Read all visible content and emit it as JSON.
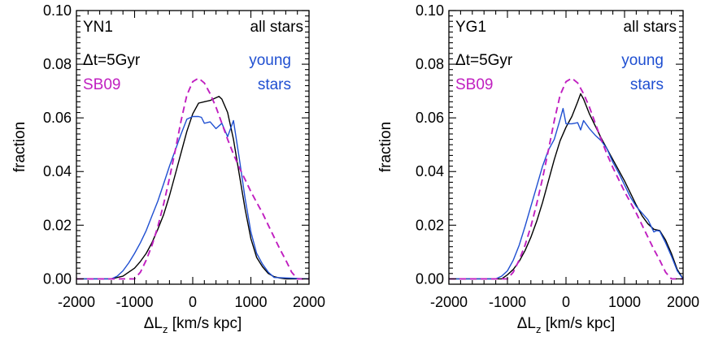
{
  "colors": {
    "all_stars": "#000000",
    "young_stars": "#1f4fd1",
    "sb09": "#c01fc0",
    "axis": "#000000",
    "background": "#ffffff"
  },
  "chart_data": [
    {
      "type": "line",
      "grid": false,
      "xlabel": "ΔL",
      "xlabel_sub": "z",
      "xlabel_units": " [km/s kpc]",
      "ylabel": "fraction",
      "xlim": [
        -2000,
        2000
      ],
      "ylim": [
        -0.002,
        0.1
      ],
      "xticks": [
        -2000,
        -1000,
        0,
        1000,
        2000
      ],
      "xtick_labels": [
        "-2000",
        "-1000",
        "0",
        "1000",
        "2000"
      ],
      "yticks": [
        0.0,
        0.02,
        0.04,
        0.06,
        0.08,
        0.1
      ],
      "ytick_labels": [
        "0.00",
        "0.02",
        "0.04",
        "0.06",
        "0.08",
        "0.10"
      ],
      "annotations": [
        {
          "text": "YN1",
          "color": "#000000"
        },
        {
          "text": "Δt=5Gyr",
          "color": "#000000"
        },
        {
          "text": "SB09",
          "color": "#c01fc0"
        }
      ],
      "legend": [
        {
          "text": "all stars",
          "color": "#000000"
        },
        {
          "text": "young",
          "color": "#1f4fd1"
        },
        {
          "text": "stars",
          "color": "#1f4fd1"
        }
      ],
      "series": [
        {
          "name": "all stars",
          "color": "#000000",
          "style": "solid",
          "x": [
            -2000,
            -1400,
            -1200,
            -1100,
            -1000,
            -900,
            -800,
            -700,
            -600,
            -500,
            -400,
            -300,
            -200,
            -100,
            0,
            100,
            200,
            300,
            400,
            450,
            500,
            600,
            700,
            800,
            900,
            1000,
            1100,
            1200,
            1300,
            1400,
            1500,
            1600,
            1700,
            2000
          ],
          "y": [
            0.0,
            0.0,
            0.001,
            0.0025,
            0.004,
            0.0065,
            0.0095,
            0.0135,
            0.0185,
            0.024,
            0.031,
            0.039,
            0.047,
            0.055,
            0.0615,
            0.0655,
            0.066,
            0.0665,
            0.0675,
            0.068,
            0.067,
            0.062,
            0.052,
            0.039,
            0.026,
            0.015,
            0.008,
            0.0045,
            0.002,
            0.0008,
            0.0003,
            0.0,
            0.0,
            0.0
          ]
        },
        {
          "name": "young stars",
          "color": "#1f4fd1",
          "style": "solid",
          "x": [
            -2000,
            -1400,
            -1300,
            -1200,
            -1100,
            -1000,
            -900,
            -800,
            -700,
            -600,
            -500,
            -400,
            -300,
            -200,
            -100,
            0,
            100,
            150,
            200,
            300,
            400,
            500,
            600,
            700,
            800,
            900,
            1000,
            1100,
            1200,
            1300,
            1400,
            2000
          ],
          "y": [
            0.0,
            0.0,
            0.001,
            0.003,
            0.006,
            0.0095,
            0.0135,
            0.018,
            0.0235,
            0.029,
            0.0355,
            0.042,
            0.048,
            0.054,
            0.0595,
            0.0605,
            0.0605,
            0.0602,
            0.058,
            0.0585,
            0.056,
            0.058,
            0.053,
            0.059,
            0.045,
            0.03,
            0.0175,
            0.0095,
            0.0055,
            0.0025,
            0.0005,
            0.0
          ]
        },
        {
          "name": "SB09",
          "color": "#c01fc0",
          "style": "dashed",
          "x": [
            -2000,
            -1000,
            -900,
            -800,
            -700,
            -600,
            -500,
            -400,
            -300,
            -200,
            -100,
            0,
            100,
            200,
            300,
            400,
            500,
            600,
            700,
            800,
            900,
            1000,
            1100,
            1200,
            1300,
            1400,
            1500,
            1600,
            1700,
            1800,
            2000
          ],
          "y": [
            0.0,
            0.0,
            0.0025,
            0.007,
            0.0125,
            0.0195,
            0.028,
            0.0375,
            0.048,
            0.059,
            0.0685,
            0.0735,
            0.0748,
            0.073,
            0.069,
            0.064,
            0.058,
            0.052,
            0.0465,
            0.0415,
            0.037,
            0.0325,
            0.0285,
            0.0245,
            0.02,
            0.0155,
            0.011,
            0.007,
            0.0025,
            0.0,
            0.0
          ]
        }
      ]
    },
    {
      "type": "line",
      "grid": false,
      "xlabel": "ΔL",
      "xlabel_sub": "z",
      "xlabel_units": " [km/s kpc]",
      "ylabel": "fraction",
      "xlim": [
        -2000,
        2000
      ],
      "ylim": [
        -0.002,
        0.1
      ],
      "xticks": [
        -2000,
        -1000,
        0,
        1000,
        2000
      ],
      "xtick_labels": [
        "-2000",
        "-1000",
        "0",
        "1000",
        "2000"
      ],
      "yticks": [
        0.0,
        0.02,
        0.04,
        0.06,
        0.08,
        0.1
      ],
      "ytick_labels": [
        "0.00",
        "0.02",
        "0.04",
        "0.06",
        "0.08",
        "0.10"
      ],
      "annotations": [
        {
          "text": "YG1",
          "color": "#000000"
        },
        {
          "text": "Δt=5Gyr",
          "color": "#000000"
        },
        {
          "text": "SB09",
          "color": "#c01fc0"
        }
      ],
      "legend": [
        {
          "text": "all stars",
          "color": "#000000"
        },
        {
          "text": "young",
          "color": "#1f4fd1"
        },
        {
          "text": "stars",
          "color": "#1f4fd1"
        }
      ],
      "series": [
        {
          "name": "all stars",
          "color": "#000000",
          "style": "solid",
          "x": [
            -2000,
            -1100,
            -1000,
            -900,
            -800,
            -700,
            -600,
            -500,
            -400,
            -300,
            -200,
            -100,
            0,
            100,
            200,
            250,
            300,
            400,
            500,
            600,
            700,
            800,
            900,
            1000,
            1100,
            1200,
            1300,
            1400,
            1500,
            1600,
            1700,
            1800,
            1900,
            2000
          ],
          "y": [
            0.0,
            0.0,
            0.0015,
            0.0035,
            0.0065,
            0.0105,
            0.0155,
            0.0215,
            0.0285,
            0.0365,
            0.0445,
            0.0515,
            0.0565,
            0.0605,
            0.066,
            0.069,
            0.067,
            0.0615,
            0.057,
            0.0525,
            0.0485,
            0.0445,
            0.0405,
            0.0365,
            0.032,
            0.0275,
            0.0235,
            0.0205,
            0.0185,
            0.018,
            0.0145,
            0.0095,
            0.0035,
            0.0
          ]
        },
        {
          "name": "young stars",
          "color": "#1f4fd1",
          "style": "solid",
          "x": [
            -2000,
            -1200,
            -1100,
            -1000,
            -900,
            -800,
            -700,
            -600,
            -500,
            -400,
            -300,
            -200,
            -100,
            -50,
            0,
            100,
            200,
            250,
            300,
            400,
            500,
            600,
            700,
            800,
            900,
            1000,
            1100,
            1200,
            1300,
            1400,
            1500,
            1550,
            1600,
            1700,
            1800,
            1900,
            2000
          ],
          "y": [
            0.0,
            0.0,
            0.001,
            0.003,
            0.007,
            0.0125,
            0.0195,
            0.027,
            0.0345,
            0.042,
            0.048,
            0.052,
            0.0595,
            0.0635,
            0.0578,
            0.0578,
            0.0582,
            0.0555,
            0.059,
            0.056,
            0.0535,
            0.0515,
            0.0485,
            0.0435,
            0.0395,
            0.035,
            0.0305,
            0.027,
            0.0245,
            0.022,
            0.0175,
            0.018,
            0.0178,
            0.0135,
            0.0085,
            0.003,
            0.0
          ]
        },
        {
          "name": "SB09",
          "color": "#c01fc0",
          "style": "dashed",
          "x": [
            -2000,
            -1000,
            -900,
            -800,
            -700,
            -600,
            -500,
            -400,
            -300,
            -200,
            -100,
            0,
            100,
            200,
            300,
            400,
            500,
            600,
            700,
            800,
            900,
            1000,
            1100,
            1200,
            1300,
            1400,
            1500,
            1600,
            1700,
            1800,
            2000
          ],
          "y": [
            0.0,
            0.0,
            0.0025,
            0.007,
            0.0125,
            0.0195,
            0.028,
            0.0375,
            0.048,
            0.059,
            0.0685,
            0.0735,
            0.0748,
            0.073,
            0.069,
            0.064,
            0.058,
            0.052,
            0.0465,
            0.0415,
            0.037,
            0.0325,
            0.0285,
            0.0245,
            0.02,
            0.0155,
            0.011,
            0.007,
            0.0025,
            0.0,
            0.0
          ]
        }
      ]
    }
  ]
}
